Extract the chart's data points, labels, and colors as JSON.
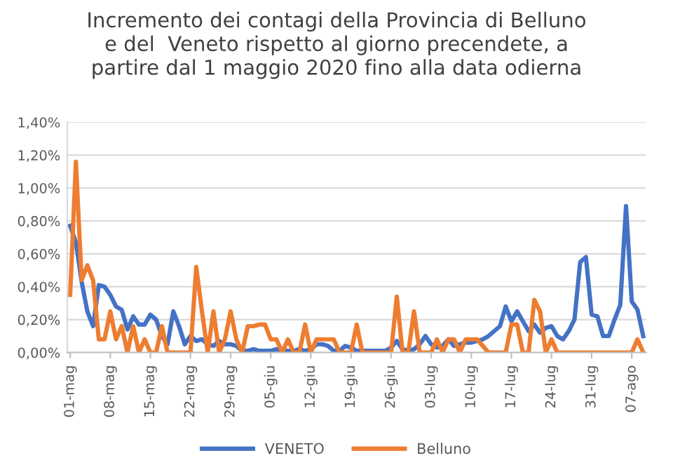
{
  "chart_data": {
    "type": "line",
    "title": "Incremento dei contagi della Provincia di Belluno\ne del  Veneto rispetto al giorno precendete, a\npartire dal 1 maggio 2020 fino alla data odierna",
    "categories": [
      "01-mag",
      null,
      null,
      null,
      null,
      null,
      null,
      "08-mag",
      null,
      null,
      null,
      null,
      null,
      null,
      "15-mag",
      null,
      null,
      null,
      null,
      null,
      null,
      "22-mag",
      null,
      null,
      null,
      null,
      null,
      null,
      "29-mag",
      null,
      null,
      null,
      null,
      null,
      null,
      "05-giu",
      null,
      null,
      null,
      null,
      null,
      null,
      "12-giu",
      null,
      null,
      null,
      null,
      null,
      null,
      "19-giu",
      null,
      null,
      null,
      null,
      null,
      null,
      "26-giu",
      null,
      null,
      null,
      null,
      null,
      null,
      "03-lug",
      null,
      null,
      null,
      null,
      null,
      null,
      "10-lug",
      null,
      null,
      null,
      null,
      null,
      null,
      "17-lug",
      null,
      null,
      null,
      null,
      null,
      null,
      "24-lug",
      null,
      null,
      null,
      null,
      null,
      null,
      "31-lug",
      null,
      null,
      null,
      null,
      null,
      null,
      "07-ago",
      null,
      null
    ],
    "series": [
      {
        "name": "VENETO",
        "color": "#4472c4",
        "values": [
          0.77,
          0.67,
          0.43,
          0.25,
          0.16,
          0.41,
          0.4,
          0.35,
          0.28,
          0.26,
          0.14,
          0.22,
          0.17,
          0.17,
          0.23,
          0.2,
          0.1,
          0.05,
          0.25,
          0.16,
          0.05,
          0.1,
          0.07,
          0.08,
          0.05,
          0.04,
          0.07,
          0.05,
          0.05,
          0.04,
          0.01,
          0.01,
          0.02,
          0.01,
          0.01,
          0.01,
          0.02,
          0.01,
          0.01,
          0.01,
          0.02,
          0.01,
          0.02,
          0.05,
          0.05,
          0.04,
          0.01,
          0.01,
          0.04,
          0.03,
          0.01,
          0.01,
          0.01,
          0.01,
          0.01,
          0.01,
          0.03,
          0.07,
          0.02,
          0.01,
          0.02,
          0.05,
          0.1,
          0.05,
          0.03,
          0.04,
          0.08,
          0.04,
          0.05,
          0.06,
          0.06,
          0.07,
          0.08,
          0.1,
          0.13,
          0.16,
          0.28,
          0.19,
          0.25,
          0.19,
          0.13,
          0.17,
          0.12,
          0.15,
          0.16,
          0.1,
          0.08,
          0.13,
          0.2,
          0.55,
          0.58,
          0.23,
          0.22,
          0.1,
          0.1,
          0.2,
          0.29,
          0.89,
          0.31,
          0.26,
          0.1
        ]
      },
      {
        "name": "Belluno",
        "color": "#ed7d31",
        "values": [
          0.35,
          1.16,
          0.44,
          0.53,
          0.44,
          0.08,
          0.08,
          0.25,
          0.08,
          0.16,
          0,
          0.16,
          0,
          0.08,
          0,
          0,
          0.16,
          0,
          0,
          0,
          0,
          0,
          0.52,
          0.25,
          0,
          0.25,
          0,
          0.08,
          0.25,
          0.08,
          0,
          0.16,
          0.16,
          0.17,
          0.17,
          0.08,
          0.08,
          0,
          0.08,
          0,
          0,
          0.17,
          0,
          0.08,
          0.08,
          0.08,
          0.08,
          0,
          0,
          0,
          0.17,
          0,
          0,
          0,
          0,
          0,
          0,
          0.34,
          0,
          0,
          0.25,
          0,
          0,
          0,
          0.08,
          0,
          0.08,
          0.08,
          0,
          0.08,
          0.08,
          0.08,
          0.04,
          0,
          0,
          0,
          0,
          0.17,
          0.17,
          0,
          0,
          0.32,
          0.25,
          0,
          0.08,
          0,
          0,
          0,
          0,
          0,
          0,
          0,
          0,
          0,
          0,
          0,
          0,
          0,
          0,
          0.08,
          0
        ]
      }
    ],
    "ylim": [
      0,
      1.4
    ],
    "yticks": [
      {
        "value": 0,
        "label": "0,00%"
      },
      {
        "value": 0.2,
        "label": "0,20%"
      },
      {
        "value": 0.4,
        "label": "0,40%"
      },
      {
        "value": 0.6,
        "label": "0,60%"
      },
      {
        "value": 0.8,
        "label": "0,80%"
      },
      {
        "value": 1.0,
        "label": "1,00%"
      },
      {
        "value": 1.2,
        "label": "1,20%"
      },
      {
        "value": 1.4,
        "label": "1,40%"
      }
    ],
    "grid": "y",
    "legend": "bottom",
    "marker": "none",
    "line_style": "solid"
  }
}
